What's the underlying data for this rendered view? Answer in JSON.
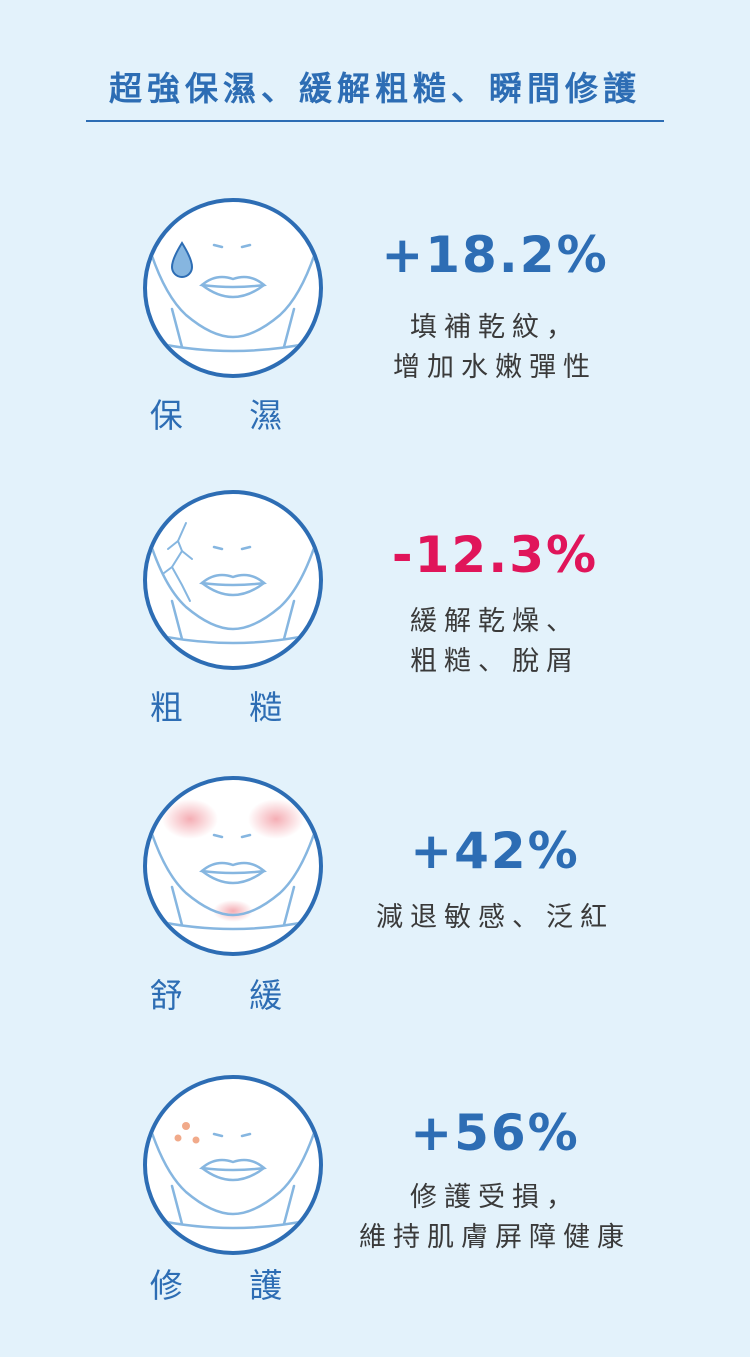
{
  "header": {
    "title": "超強保濕、緩解粗糙、瞬間修護"
  },
  "benefits": [
    {
      "label": "保 濕",
      "percent": "+18.2%",
      "desc_line1": "填補乾紋，",
      "desc_line2": "增加水嫩彈性",
      "face_icon": "face-water-drop-icon"
    },
    {
      "label": "粗 糙",
      "percent": "-12.3%",
      "desc_line1": "緩解乾燥、",
      "desc_line2": "粗糙、脫屑",
      "face_icon": "face-cracked-skin-icon"
    },
    {
      "label": "舒 緩",
      "percent": "+42%",
      "desc_line1": "減退敏感、泛紅",
      "desc_line2": "",
      "face_icon": "face-redness-icon"
    },
    {
      "label": "修 護",
      "percent": "+56%",
      "desc_line1": "修護受損，",
      "desc_line2": "維持肌膚屏障健康",
      "face_icon": "face-spots-icon"
    }
  ],
  "colors": {
    "background": "#e3f2fb",
    "primary": "#2d6db4",
    "negative": "#e0155a",
    "face_line": "#86b6e0",
    "redness": "#f4b3b8"
  }
}
